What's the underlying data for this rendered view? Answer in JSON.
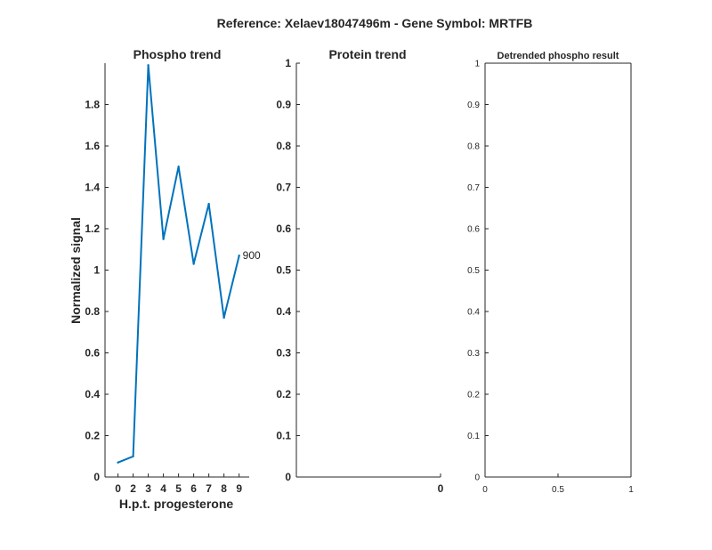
{
  "figure": {
    "suptitle": "Reference:  Xelaev18047496m - Gene Symbol:  MRTFB"
  },
  "chart_data": [
    {
      "type": "line",
      "title": "Phospho trend",
      "xlabel": "H.p.t. progesterone",
      "ylabel": "Normalized signal",
      "x_ticks": [
        "0",
        "2",
        "3",
        "4",
        "5",
        "6",
        "7",
        "8",
        "9"
      ],
      "y_ticks": [
        "0",
        "0.2",
        "0.4",
        "0.6",
        "0.8",
        "1",
        "1.2",
        "1.4",
        "1.6",
        "1.8"
      ],
      "ylim": [
        0,
        2.0
      ],
      "series": [
        {
          "x": [
            "0",
            "2",
            "3",
            "4",
            "5",
            "6",
            "7",
            "8",
            "9"
          ],
          "values": [
            0.07,
            0.1,
            1.99,
            1.15,
            1.5,
            1.03,
            1.32,
            0.77,
            1.07
          ],
          "end_label": "900",
          "color": "#0072BD"
        }
      ]
    },
    {
      "type": "line",
      "title": "Protein trend",
      "xlabel": "",
      "ylabel": "",
      "x_ticks": [
        "0"
      ],
      "y_ticks": [
        "0",
        "0.1",
        "0.2",
        "0.3",
        "0.4",
        "0.5",
        "0.6",
        "0.7",
        "0.8",
        "0.9",
        "1"
      ],
      "ylim": [
        0,
        1
      ],
      "series": []
    },
    {
      "type": "line",
      "title": "Detrended phospho result",
      "xlabel": "",
      "ylabel": "",
      "x_ticks": [
        "0",
        "0.5",
        "1"
      ],
      "y_ticks": [
        "0",
        "0.1",
        "0.2",
        "0.3",
        "0.4",
        "0.5",
        "0.6",
        "0.7",
        "0.8",
        "0.9",
        "1"
      ],
      "xlim": [
        0,
        1
      ],
      "ylim": [
        0,
        1
      ],
      "series": []
    }
  ]
}
